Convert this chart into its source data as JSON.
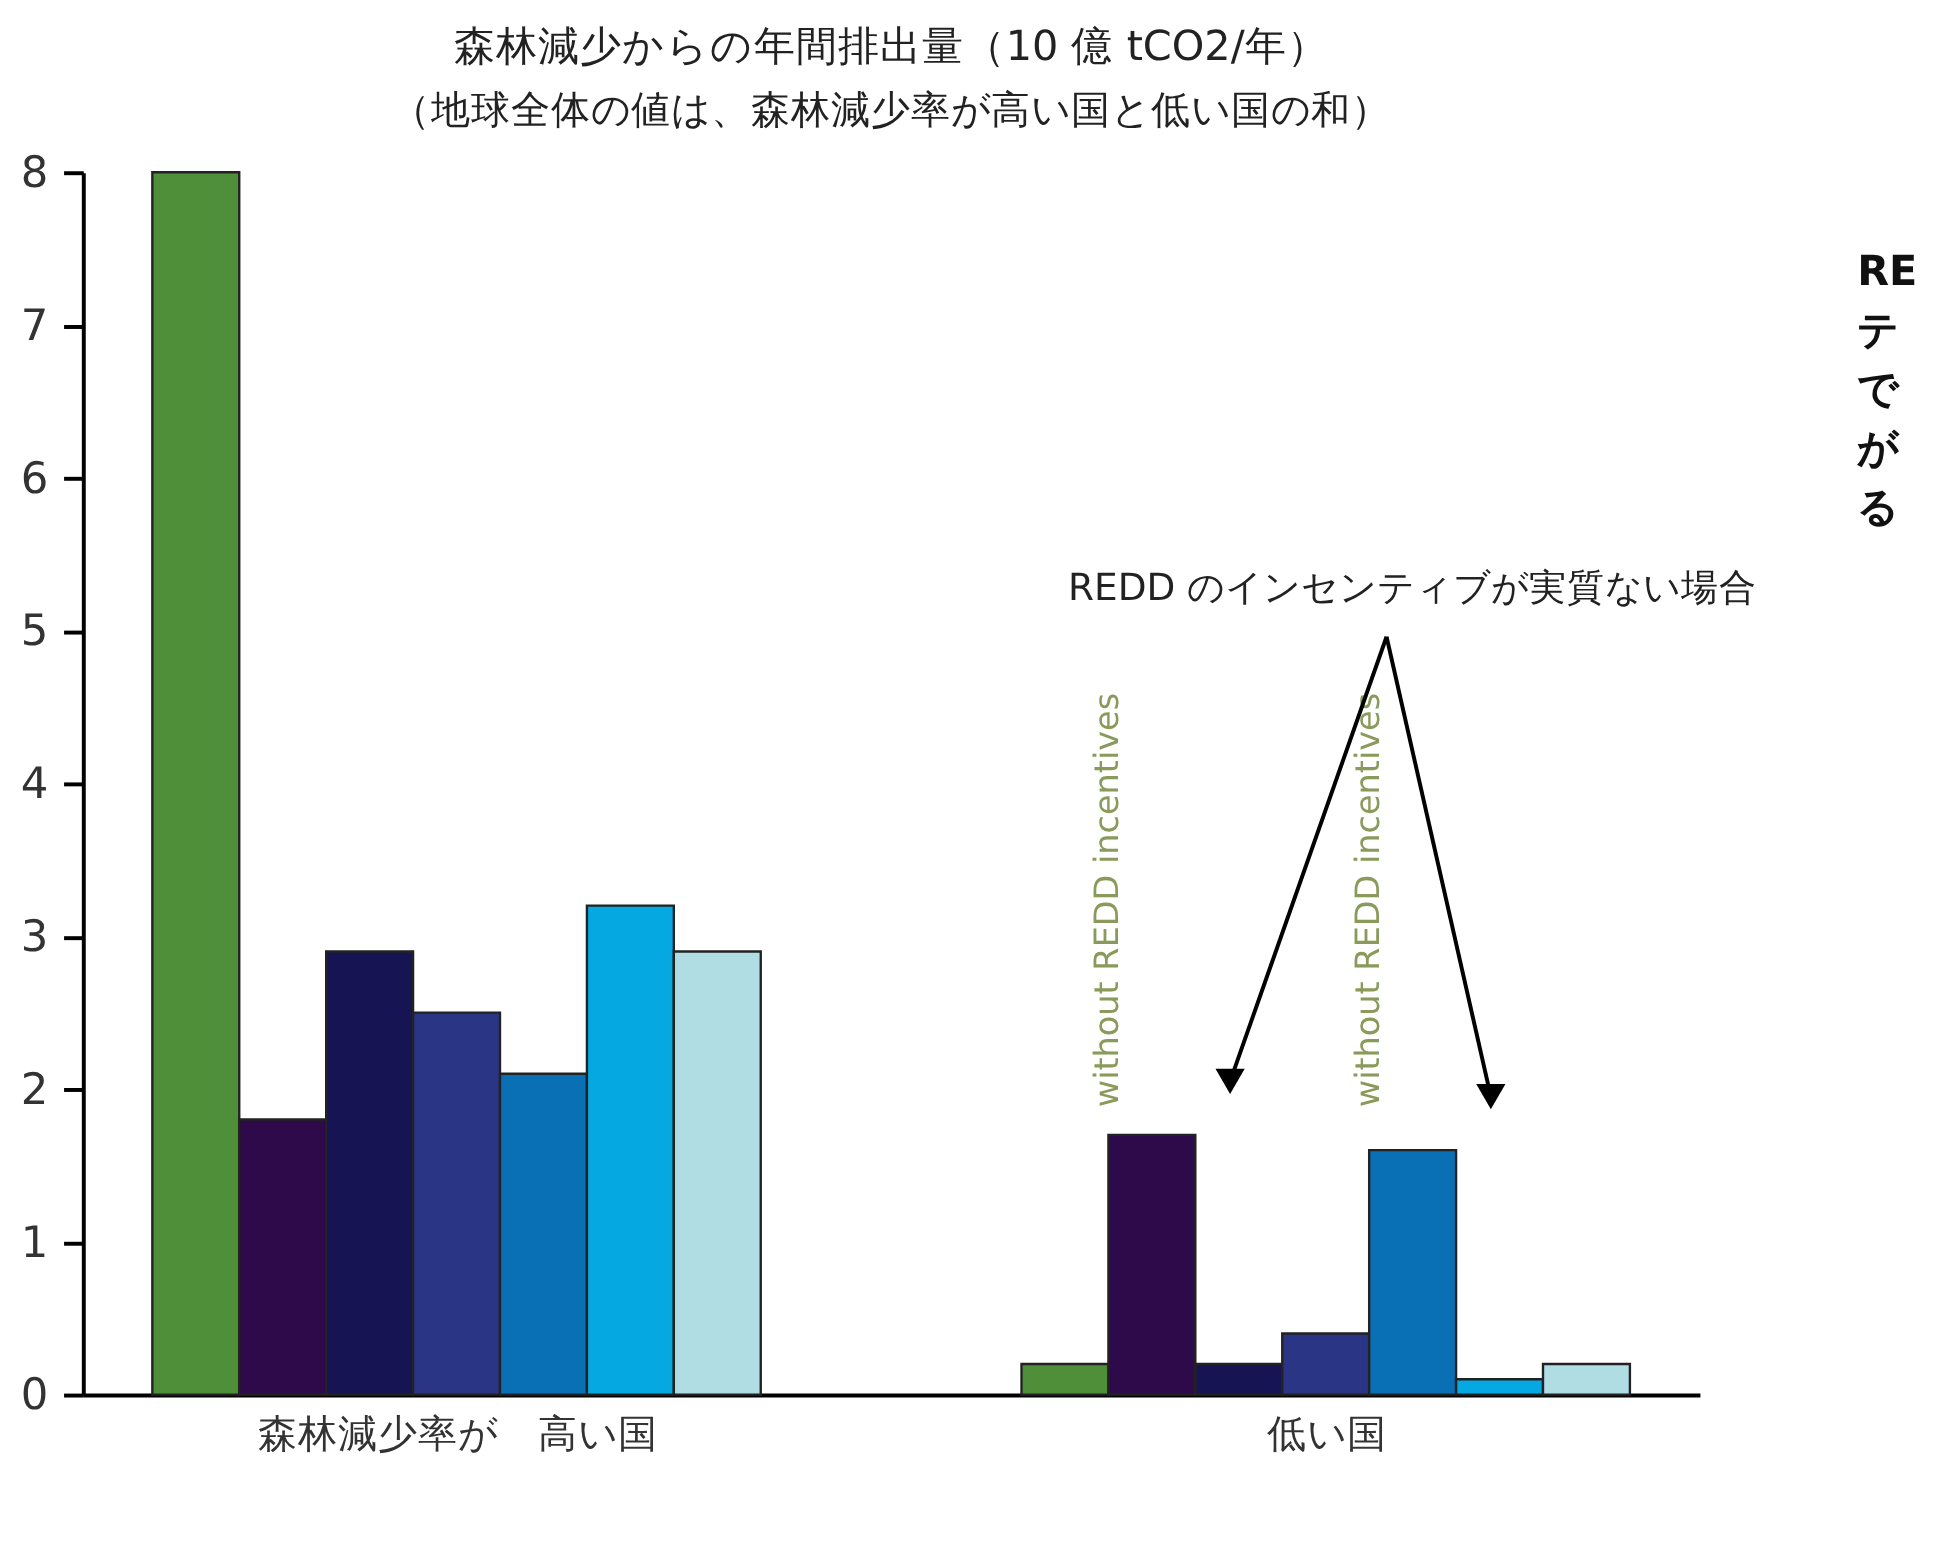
{
  "chart_data": {
    "type": "bar",
    "title": "森林減少からの年間排出量（10 億 tCO2/年）",
    "subtitle": "（地球全体の値は、森林減少率が高い国と低い国の和）",
    "categories": [
      "森林減少率が　高い国",
      "低い国"
    ],
    "series": [
      {
        "color": "#4f8f3a",
        "values": [
          8.0,
          0.2
        ]
      },
      {
        "color": "#2e0a4a",
        "values": [
          1.8,
          1.7
        ]
      },
      {
        "color": "#161452",
        "values": [
          2.9,
          0.2
        ]
      },
      {
        "color": "#2a3585",
        "values": [
          2.5,
          0.4
        ]
      },
      {
        "color": "#0a70b5",
        "values": [
          2.1,
          1.6
        ]
      },
      {
        "color": "#05a8e0",
        "values": [
          3.2,
          0.1
        ]
      },
      {
        "color": "#b0dce4",
        "values": [
          2.9,
          0.2
        ]
      }
    ],
    "ylim": [
      0,
      8
    ],
    "yticks": [
      0,
      1,
      2,
      3,
      4,
      5,
      6,
      7,
      8
    ],
    "grid": false,
    "legend": false,
    "annotations": [
      "REDD のインセンティブが実質ない場合",
      "without REDD incentives",
      "without REDD incentives",
      "RE",
      "テ",
      "で",
      "が",
      "る"
    ]
  }
}
